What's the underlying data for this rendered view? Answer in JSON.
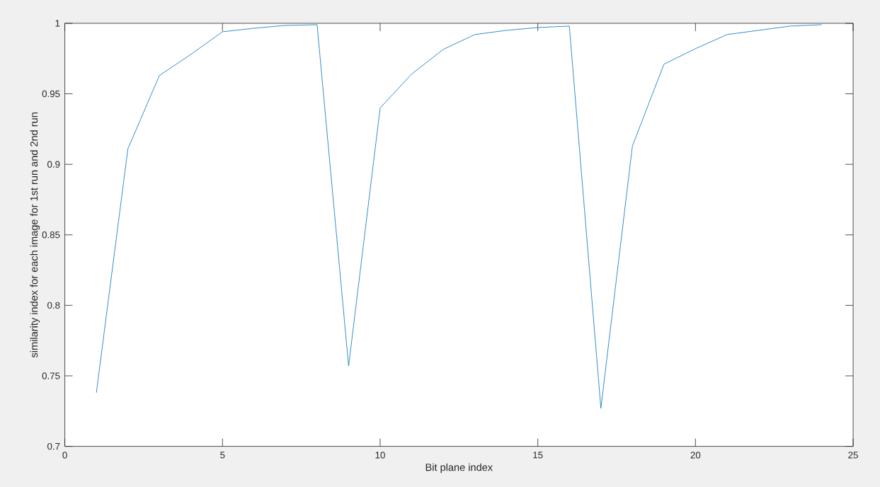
{
  "chart_data": {
    "type": "line",
    "xlabel": "Bit plane index",
    "ylabel": "similarity index for each image for 1st run and 2nd run",
    "x": [
      1,
      2,
      3,
      4,
      5,
      6,
      7,
      8,
      9,
      10,
      11,
      12,
      13,
      14,
      15,
      16,
      17,
      18,
      19,
      20,
      21,
      22,
      23,
      24
    ],
    "series": [
      {
        "color": "#0072bd",
        "values": [
          0.738,
          0.911,
          0.963,
          0.978,
          0.994,
          0.9965,
          0.9985,
          0.999,
          0.757,
          0.94,
          0.964,
          0.9815,
          0.992,
          0.995,
          0.997,
          0.998,
          0.727,
          0.913,
          0.971,
          0.982,
          0.992,
          0.995,
          0.998,
          0.999
        ]
      }
    ],
    "xlim": [
      0,
      25
    ],
    "ylim": [
      0.7,
      1
    ],
    "xticks": [
      0,
      5,
      10,
      15,
      20,
      25
    ],
    "yticks": [
      0.7,
      0.75,
      0.8,
      0.85,
      0.9,
      0.95,
      1
    ],
    "marker": "none",
    "line_style": "solid"
  }
}
